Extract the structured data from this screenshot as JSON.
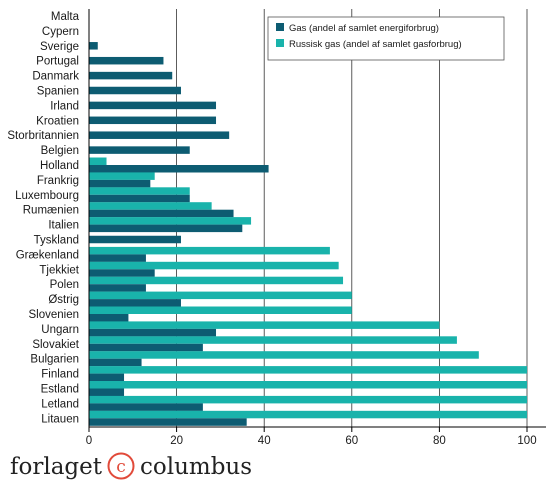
{
  "colors": {
    "gas": "#0d5c72",
    "russian": "#19b3ab",
    "grid": "#333333"
  },
  "brand": {
    "left": "forlaget",
    "mark": "c",
    "right": "columbus"
  },
  "chart_data": {
    "type": "bar",
    "orientation": "horizontal",
    "categories": [
      "Malta",
      "Cypern",
      "Sverige",
      "Portugal",
      "Danmark",
      "Spanien",
      "Irland",
      "Kroatien",
      "Storbritannien",
      "Belgien",
      "Holland",
      "Frankrig",
      "Luxembourg",
      "Rumænien",
      "Italien",
      "Tyskland",
      "Grækenland",
      "Tjekkiet",
      "Polen",
      "Østrig",
      "Slovenien",
      "Ungarn",
      "Slovakiet",
      "Bulgarien",
      "Finland",
      "Estland",
      "Letland",
      "Litauen"
    ],
    "series": [
      {
        "name": "Gas (andel af samlet energiforbrug)",
        "color": "#0d5c72",
        "values": [
          0,
          0,
          2,
          17,
          19,
          21,
          29,
          29,
          32,
          23,
          41,
          14,
          23,
          33,
          35,
          21,
          13,
          15,
          13,
          21,
          9,
          29,
          26,
          12,
          8,
          8,
          26,
          36
        ]
      },
      {
        "name": "Russisk gas (andel af samlet gasforbrug)",
        "color": "#19b3ab",
        "values": [
          0,
          0,
          0,
          0,
          0,
          0,
          0,
          0,
          0,
          0,
          4,
          15,
          23,
          28,
          37,
          0,
          55,
          57,
          58,
          60,
          60,
          80,
          84,
          89,
          100,
          100,
          100,
          100
        ]
      }
    ],
    "xlim": [
      0,
      100
    ],
    "xticks": [
      0,
      20,
      40,
      60,
      80,
      100
    ],
    "grid": true,
    "legend_position": "top-right"
  }
}
